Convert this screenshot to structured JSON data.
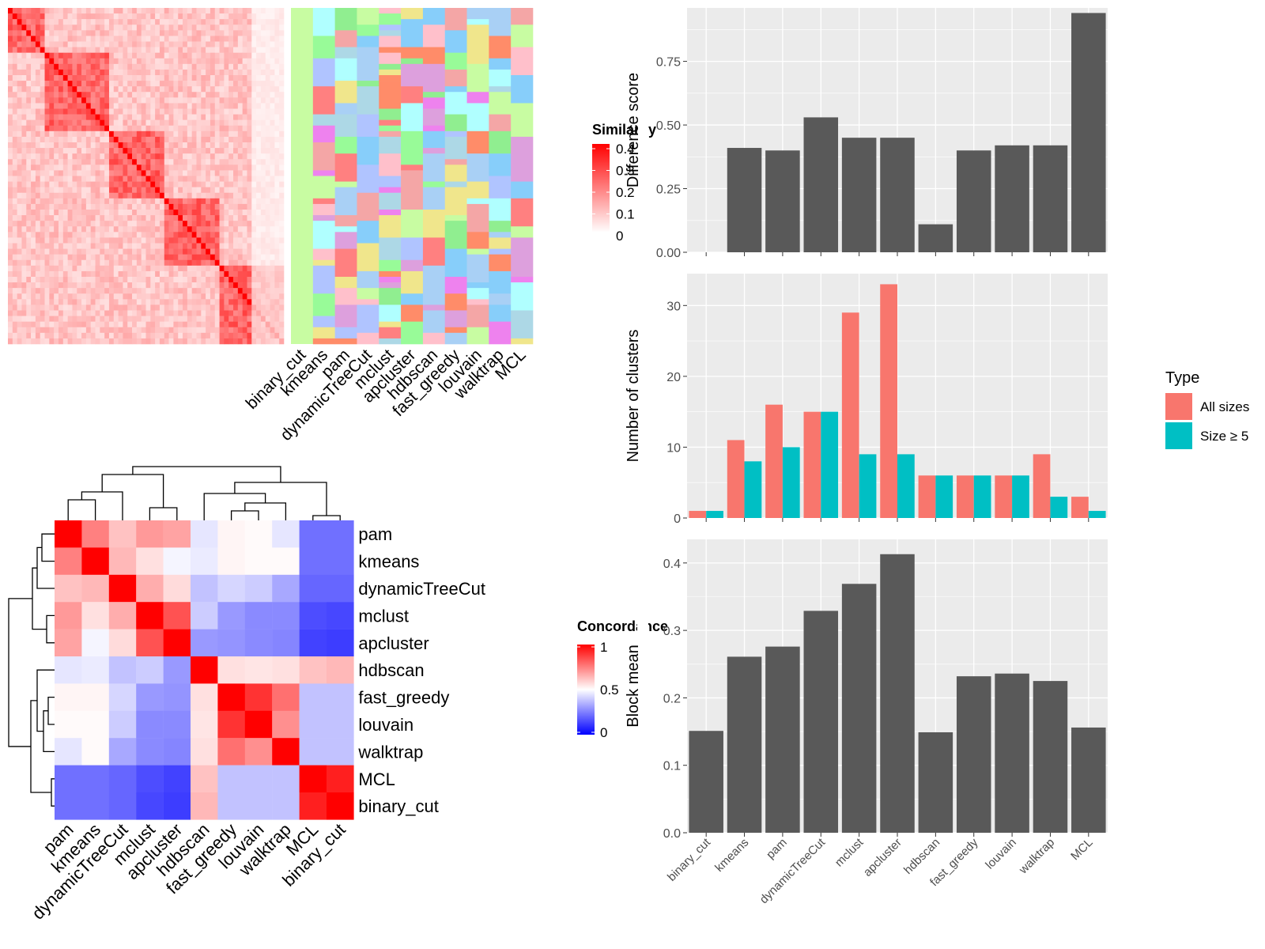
{
  "colors": {
    "similarity_high": "#ff0000",
    "similarity_low": "#ffffff",
    "concordance_high": "#ff0000",
    "concordance_mid": "#ffffff",
    "concordance_low": "#0000ff",
    "bar_gray": "#595959",
    "panel_bg": "#ebebeb",
    "all_sizes": "#f8766d",
    "size_ge5": "#00bfc4",
    "heatmap_bg_green": "#c8fca2"
  },
  "chart_data": [
    {
      "type": "heatmap",
      "id": "similarity-heatmap",
      "legend_title": "Similarity",
      "legend_ticks": [
        "0.4",
        "0.3",
        "0.2",
        "0.1",
        "0"
      ],
      "column_labels": [
        "binary_cut",
        "kmeans",
        "pam",
        "dynamicTreeCut",
        "mclust",
        "apcluster",
        "hdbscan",
        "fast_greedy",
        "louvain",
        "walktrap",
        "MCL"
      ],
      "cluster_palette": [
        "#ffc0cb",
        "#a9d0f5",
        "#90ee90",
        "#ff8080",
        "#b0c4ff",
        "#87cefa",
        "#ee82ee",
        "#c8fca2",
        "#f0e68c",
        "#b0ffff",
        "#ff8c69",
        "#dda0dd",
        "#98fb98",
        "#f4a6a6",
        "#add8e6"
      ]
    },
    {
      "type": "heatmap",
      "id": "concordance-heatmap",
      "legend_title": "Concordance",
      "legend_ticks": [
        "1",
        "0.5",
        "0"
      ],
      "row_labels": [
        "pam",
        "kmeans",
        "dynamicTreeCut",
        "mclust",
        "apcluster",
        "hdbscan",
        "fast_greedy",
        "louvain",
        "walktrap",
        "MCL",
        "binary_cut"
      ],
      "col_labels": [
        "pam",
        "kmeans",
        "dynamicTreeCut",
        "mclust",
        "apcluster",
        "hdbscan",
        "fast_greedy",
        "louvain",
        "walktrap",
        "MCL",
        "binary_cut"
      ],
      "values": [
        [
          1.0,
          0.75,
          0.62,
          0.7,
          0.68,
          0.45,
          0.52,
          0.51,
          0.45,
          0.22,
          0.22
        ],
        [
          0.75,
          1.0,
          0.64,
          0.56,
          0.48,
          0.46,
          0.52,
          0.51,
          0.51,
          0.22,
          0.22
        ],
        [
          0.62,
          0.64,
          1.0,
          0.66,
          0.57,
          0.38,
          0.42,
          0.4,
          0.33,
          0.2,
          0.2
        ],
        [
          0.7,
          0.56,
          0.66,
          1.0,
          0.84,
          0.4,
          0.3,
          0.27,
          0.27,
          0.15,
          0.14
        ],
        [
          0.68,
          0.48,
          0.57,
          0.84,
          1.0,
          0.3,
          0.29,
          0.27,
          0.26,
          0.13,
          0.12
        ],
        [
          0.45,
          0.46,
          0.38,
          0.4,
          0.3,
          1.0,
          0.56,
          0.55,
          0.56,
          0.62,
          0.64
        ],
        [
          0.52,
          0.52,
          0.42,
          0.3,
          0.29,
          0.56,
          1.0,
          0.9,
          0.78,
          0.38,
          0.38
        ],
        [
          0.51,
          0.51,
          0.4,
          0.27,
          0.27,
          0.55,
          0.9,
          1.0,
          0.72,
          0.38,
          0.38
        ],
        [
          0.45,
          0.51,
          0.33,
          0.27,
          0.26,
          0.56,
          0.78,
          0.72,
          1.0,
          0.38,
          0.38
        ],
        [
          0.22,
          0.22,
          0.2,
          0.15,
          0.13,
          0.62,
          0.38,
          0.38,
          0.38,
          1.0,
          0.94
        ],
        [
          0.22,
          0.22,
          0.2,
          0.14,
          0.12,
          0.64,
          0.38,
          0.38,
          0.38,
          0.94,
          1.0
        ]
      ]
    },
    {
      "type": "bar",
      "id": "difference-score",
      "ylabel": "Difference score",
      "categories": [
        "binary_cut",
        "kmeans",
        "pam",
        "dynamicTreeCut",
        "mclust",
        "apcluster",
        "hdbscan",
        "fast_greedy",
        "louvain",
        "walktrap",
        "MCL"
      ],
      "values": [
        0.0,
        0.41,
        0.4,
        0.53,
        0.45,
        0.45,
        0.11,
        0.4,
        0.42,
        0.42,
        0.94
      ],
      "ylim": [
        0,
        0.96
      ],
      "yticks": [
        "0.00",
        "0.25",
        "0.50",
        "0.75"
      ]
    },
    {
      "type": "bar",
      "id": "number-of-clusters",
      "ylabel": "Number of clusters",
      "categories": [
        "binary_cut",
        "kmeans",
        "pam",
        "dynamicTreeCut",
        "mclust",
        "apcluster",
        "hdbscan",
        "fast_greedy",
        "louvain",
        "walktrap",
        "MCL"
      ],
      "series": [
        {
          "name": "All sizes",
          "values": [
            1,
            11,
            16,
            15,
            29,
            33,
            6,
            6,
            6,
            9,
            3
          ]
        },
        {
          "name": "Size ≥ 5",
          "values": [
            1,
            8,
            10,
            15,
            9,
            9,
            6,
            6,
            6,
            3,
            1
          ]
        }
      ],
      "legend_title": "Type",
      "legend_position": "right",
      "ylim": [
        0,
        34.5
      ],
      "yticks": [
        "0",
        "10",
        "20",
        "30"
      ]
    },
    {
      "type": "bar",
      "id": "block-mean",
      "ylabel": "Block mean",
      "categories": [
        "binary_cut",
        "kmeans",
        "pam",
        "dynamicTreeCut",
        "mclust",
        "apcluster",
        "hdbscan",
        "fast_greedy",
        "louvain",
        "walktrap",
        "MCL"
      ],
      "values": [
        0.151,
        0.261,
        0.276,
        0.329,
        0.369,
        0.413,
        0.149,
        0.232,
        0.236,
        0.225,
        0.156
      ],
      "ylim": [
        0,
        0.435
      ],
      "yticks": [
        "0.0",
        "0.1",
        "0.2",
        "0.3",
        "0.4"
      ]
    }
  ]
}
